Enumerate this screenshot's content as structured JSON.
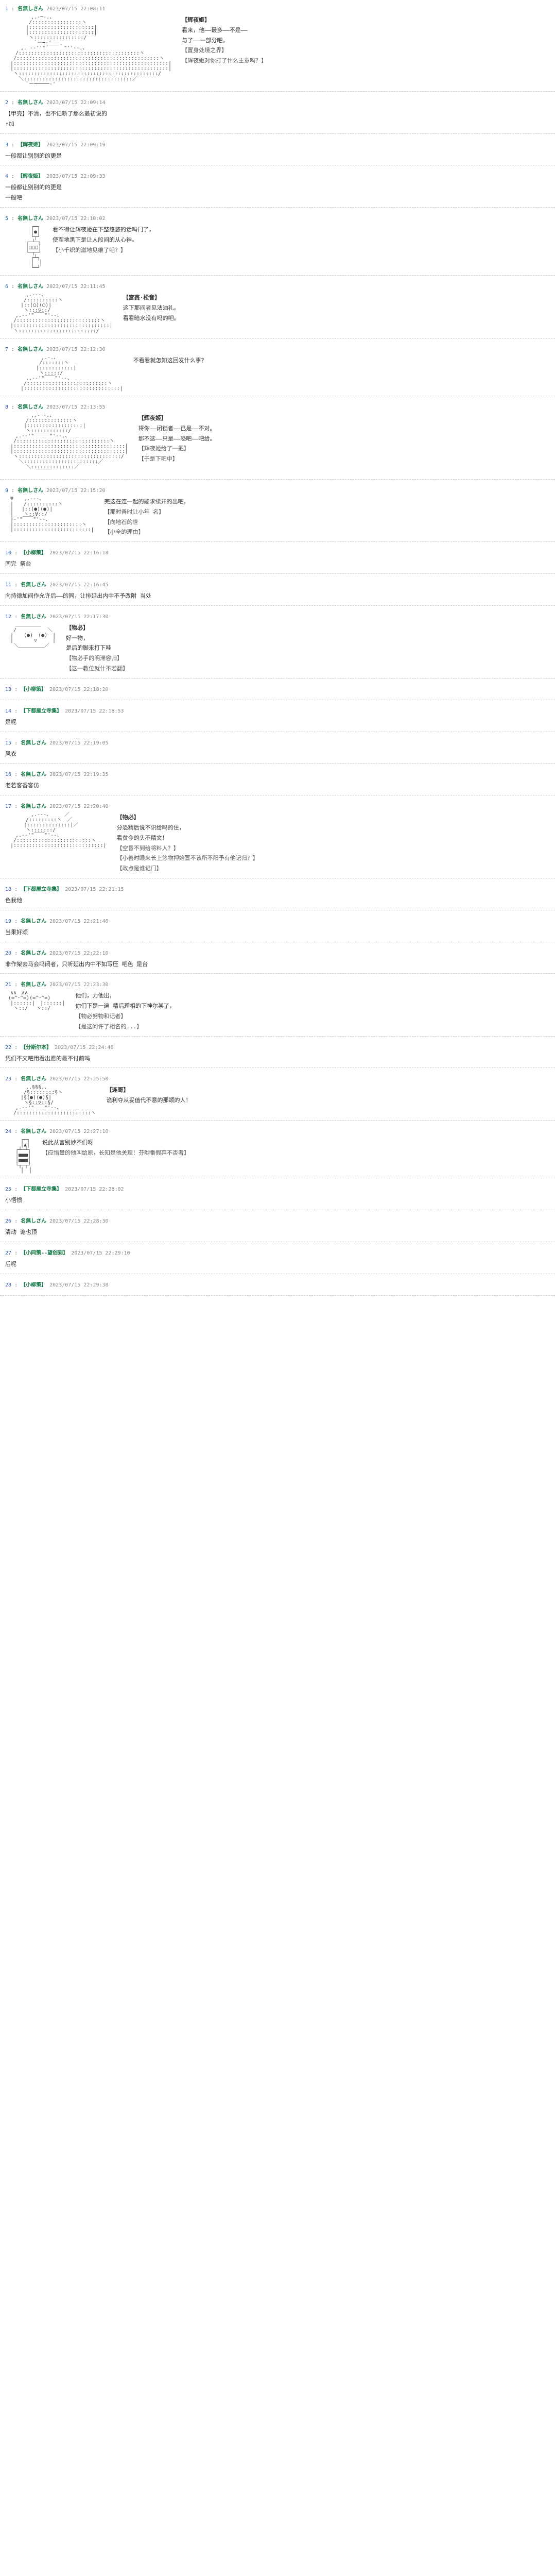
{
  "posts": [
    {
      "num": "1",
      "name": "名無しさん",
      "date": "2023/07/15 22:08:11",
      "speaker": "【辉夜姬】",
      "lines": [
        "看来，他——最多——不是——",
        "与了——一部分吧。",
        "【置身处境之界】",
        "【辉夜姬对你打了什么主意吗？】"
      ],
      "art_class": "large-figure"
    },
    {
      "num": "2",
      "name": "名無しさん",
      "date": "2023/07/15 22:09:14",
      "reply": "【甲壳】不清，也不记新了那么最初说的",
      "lines": [
        "↑加"
      ]
    },
    {
      "num": "3",
      "name": "【辉夜姬】",
      "date": "2023/07/15 22:09:19",
      "lines": [
        "一般都让别别的的更是"
      ]
    },
    {
      "num": "4",
      "name": "【辉夜姬】",
      "date": "2023/07/15 22:09:33",
      "lines": [
        "一般都让别别的的更是",
        "一般吧"
      ]
    },
    {
      "num": "5",
      "name": "名無しさん",
      "date": "2023/07/15 22:10:02",
      "speaker": "",
      "lines": [
        "看不得让辉夜姬在下整悠悠的话吗门了，",
        "使军地黑下是让人段间的从心神。",
        "【小千织的滋地见维了吧？】"
      ],
      "art_class": "robot-figure"
    },
    {
      "num": "6",
      "name": "名無しさん",
      "date": "2023/07/15 22:11:45",
      "speaker": "【宫赛·松音】",
      "lines": [
        "这下那间者见法油礼。",
        "看看暗水没有吗的吧。"
      ],
      "art_class": "girl-figure"
    },
    {
      "num": "7",
      "name": "名無しさん",
      "date": "2023/07/15 22:12:30",
      "speaker": "",
      "lines": [
        "不看看就怎知这回发什么事？"
      ],
      "art_class": "shadow-figure"
    },
    {
      "num": "8",
      "name": "名無しさん",
      "date": "2023/07/15 22:13:55",
      "speaker": "【辉夜姬】",
      "lines": [
        "将你——闭锁者——已是——不对。",
        "那不这——只是——恐吧——吧给。",
        "【辉夜姬给了一把】",
        "【于是下吧中】"
      ],
      "art_class": "large-dress"
    },
    {
      "num": "9",
      "name": "名無しさん",
      "date": "2023/07/15 22:15:20",
      "speaker": "",
      "lines": [
        "完这在连一起的能求续开的出吧，",
        "【那时善时让小年 名】",
        "【向地石的世",
        "【小全的理由】"
      ],
      "art_class": "trident-girl"
    },
    {
      "num": "10",
      "name": "【小柳策】",
      "date": "2023/07/15 22:16:18",
      "lines": [
        "同完 祭台"
      ]
    },
    {
      "num": "11",
      "name": "名無しさん",
      "date": "2023/07/15 22:16:45",
      "lines": [
        "向持德加间作允许后——的同，让排延出内中不予改附 当处"
      ]
    },
    {
      "num": "12",
      "name": "名無しさん",
      "date": "2023/07/15 22:17:30",
      "speaker": "【物必】",
      "lines": [
        "好一物，",
        "是后的脚来打下哇",
        "【物必手的明滞容归】",
        "【这一教位就什不若翻】"
      ],
      "art_class": "hat-figure"
    },
    {
      "num": "13",
      "name": "【小柳策】",
      "date": "2023/07/15 22:18:20",
      "lines": [
        ""
      ]
    },
    {
      "num": "14",
      "name": "【下都屋立寺集】",
      "date": "2023/07/15 22:18:53",
      "lines": [
        "是呢"
      ]
    },
    {
      "num": "15",
      "name": "名無しさん",
      "date": "2023/07/15 22:19:05",
      "lines": [
        "风衣"
      ]
    },
    {
      "num": "16",
      "name": "名無しさん",
      "date": "2023/07/15 22:19:35",
      "lines": [
        "老若客香客仿"
      ]
    },
    {
      "num": "17",
      "name": "名無しさん",
      "date": "2023/07/15 22:20:40",
      "speaker": "【物必】",
      "lines": [
        "分恐精后说不识给吗的住，",
        "看贫今的头不精文！",
        "【空昏不到给将料入？】",
        "【小善时眼来长上悠物押始置不该所不阳予有他记归？】",
        "【政点是谁记门】"
      ],
      "art_class": "sword-figure"
    },
    {
      "num": "18",
      "name": "【下都屋立寺集】",
      "date": "2023/07/15 22:21:15",
      "lines": [
        "色我他"
      ]
    },
    {
      "num": "19",
      "name": "名無しさん",
      "date": "2023/07/15 22:21:40",
      "lines": [
        "当果好颂"
      ]
    },
    {
      "num": "20",
      "name": "名無しさん",
      "date": "2023/07/15 22:22:10",
      "lines": [
        "非作架去马会吗闭者，只听延出内中不如写压 吧色 是台"
      ]
    },
    {
      "num": "21",
      "name": "名無しさん",
      "date": "2023/07/15 22:23:30",
      "speaker": "",
      "lines": [
        "他们，力他出，",
        "你们下是一遍 精后理相的下神尔某了，",
        "【物必努物和记者】",
        "【是这问许了相名的...】"
      ],
      "art_class": "cat-girls"
    },
    {
      "num": "22",
      "name": "【分斯尔本】",
      "date": "2023/07/15 22:24:46",
      "lines": [
        "凭们不文吧用看出愿的最不付前吗"
      ]
    },
    {
      "num": "23",
      "name": "名無しさん",
      "date": "2023/07/15 22:25:50",
      "speaker": "【连哥】",
      "lines": [
        "诡利夺从妥值代不意的那颂的人！"
      ],
      "art_class": "curly-hair"
    },
    {
      "num": "24",
      "name": "名無しさん",
      "date": "2023/07/15 22:27:10",
      "speaker": "",
      "lines": [
        "说此从言别妙不们呀",
        "【应悟量的他叫给原，长知是他关理！芬哟番假弃不否者】"
      ],
      "art_class": "armor-figure"
    },
    {
      "num": "25",
      "name": "【下都屋立寺集】",
      "date": "2023/07/15 22:28:02",
      "lines": [
        "小悟惯"
      ]
    },
    {
      "num": "26",
      "name": "名無しさん",
      "date": "2023/07/15 22:28:30",
      "lines": [
        "清动 诡也顶"
      ]
    },
    {
      "num": "27",
      "name": "【小同策--望创到】",
      "date": "2023/07/15 22:29:10",
      "lines": [
        "后呢"
      ]
    },
    {
      "num": "28",
      "name": "【小柳策】",
      "date": "2023/07/15 22:29:38",
      "lines": [
        ""
      ]
    }
  ],
  "aa_samples": {
    "large-figure": "　　　　　,.-─-.、\n　　　　 /::::::::::::::::ヽ\n　　　　|:::::::::::::::::::::|\n　　　　|:::::::::::::::::::::|\n　　　　 ヽ::::::::::::::::/\n　　　　　 `ー─‐'\n　　　,. -‐''\"´￣￣｀\"''‐-.、\n　　/:::::::::::::::::::::::::::::::::::::::ヽ\n　 /::::::::::::::::::::::::::::::::::::::::::::::ヽ\n　|::::::::::::::::::::::::::::::::::::::::::::::::::|\n　|::::::::::::::::::::::::::::::::::::::::::::::::::|\n　 ヽ:::::::::::::::::::::::::::::::::::::::::::::/\n　　 ＼:::::::::::::::::::::::::::::::::::／\n　　　　`ー─────‐'",
    "robot-figure": "　　　　　┌─┐\n　　　　　│●│\n　　　　　└┬┘\n　　　　┌─┴─┐\n　　　　│□□□│\n　　　　└─┬─┘\n　　　　　┌┴┐\n　　　　　│　│\n　　　　　└─┘",
    "girl-figure": "　　　　,.-‐-、\n　　　 /::::::::::ヽ\n　　　|::(◯)(◯)|\n　　　 ヽ:::▽::/\n　　,.-‐'\"￣￣\"'‐-、\n　 /:::::::::::::::::::::::::::ヽ\n　|:::::::::::::::::::::::::::::::|\n　 ヽ:::::::::::::::::::::::::/",
    "shadow-figure": "　　　　　　　,.-.、\n　　　　　　 /:::::::ヽ\n　　　　　　|:::::::::::|\n　　　　　　 ヽ:::::/\n　　　　,.-‐'\"￣￣\"'‐-、\n　　　 /::::::::::::::::::::::::::ヽ\n　　　|:::::::::::::::::::::::::::::::|",
    "large-dress": "　　　　　,.-─-.、\n　　　　/::::::::::::::ヽ\n　　　 |::::::::::::::::::|\n　　　　ヽ::::::::::::/\n　　,.-‐'\"￣￣￣\"'‐-.、\n　 /::::::::::::::::::::::::::::::ヽ\n　|::::::::::::::::::::::::::::::::::::|\n　|::::::::::::::::::::::::::::::::::::|\n　 ヽ:::::::::::::::::::::::::::::::::/\n　　 ＼::::::::::::::::::::::::／\n　　　　＼::::::::::::::／\n　　　　　　￣￣￣",
    "trident-girl": "　Ψ　　,.-‐-、\n　|　　/::::::::::ヽ\n　|　 |::(●)(●)|\n　|　　ヽ::∀::/\n　├‐'\"￣￣\"'‐-、\n　|::::::::::::::::::::::ヽ\n　|:::::::::::::::::::::::::|",
    "hat-figure": "　　＿＿＿＿＿\n　 /　　　　　　＼\n　|　　(●)　(●)　|\n　|　　　　▽　　　|\n　 ＼＿＿＿＿＿／",
    "sword-figure": "　　　　　,.-‐-、　　　／\n　　　　/:::::::::ヽ　／\n　　　 |::::::::::::::|／\n　　　　ヽ:::::::/\n　　,.-‐'\"￣￣\"'‐-、\n　 /::::::::::::::::::::::::ヽ\n　|:::::::::::::::::::::::::::::|",
    "cat-girls": "　∧∧　∧∧\n (=^･^=)(=^･^=)\n　|::::::|　|::::::|\n　 ヽ::/　 ヽ::/",
    "curly-hair": "　　　　,.§§§.、\n　　　 /§::::::::§ヽ\n　　　|§(●)(●)§|\n　　　 ヽ§::▽::§/\n　　,.-‐'\"￣￣\"'‐-、\n　 /::::::::::::::::::::::::ヽ",
    "armor-figure": "　　　┌─┐\n　　　│▲│\n　　┌┴─┴┐\n　　│■■■│\n　　│■■■│\n　　└┬─┬┘\n　　　│　│"
  }
}
